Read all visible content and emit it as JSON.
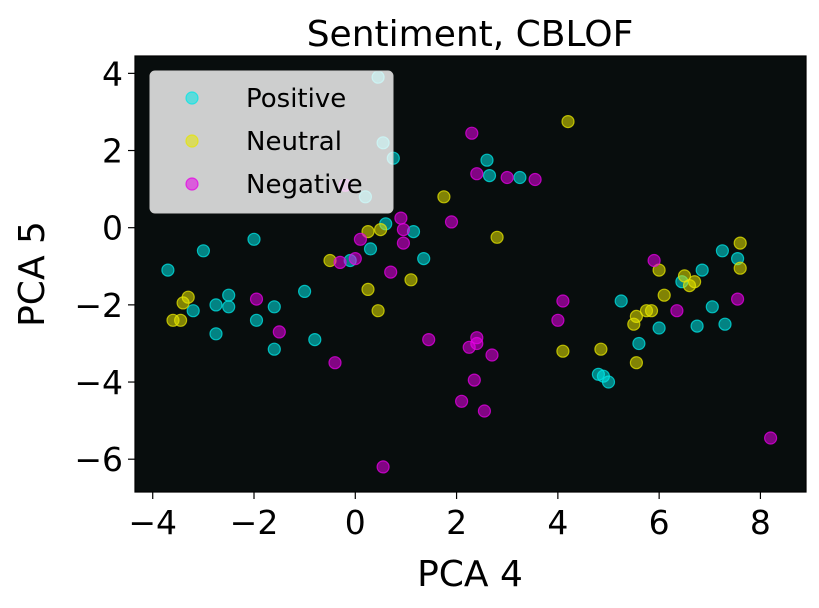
{
  "chart_data": {
    "type": "scatter",
    "title": "Sentiment, CBLOF",
    "xlabel": "PCA 4",
    "ylabel": "PCA 5",
    "xlim": [
      -4.35,
      8.9
    ],
    "ylim": [
      -6.85,
      4.45
    ],
    "xticks": [
      -4,
      -2,
      0,
      2,
      4,
      6,
      8
    ],
    "yticks": [
      -6,
      -4,
      -2,
      0,
      2,
      4
    ],
    "xtick_labels": [
      "−4",
      "−2",
      "0",
      "2",
      "4",
      "6",
      "8"
    ],
    "ytick_labels": [
      "−6",
      "−4",
      "−2",
      "0",
      "2",
      "4"
    ],
    "grid": false,
    "legend_position": "top-left",
    "background": "#080d0d",
    "series": [
      {
        "name": "Positive",
        "color": "#00e5e5",
        "points": [
          [
            0.45,
            3.9
          ],
          [
            0.55,
            2.2
          ],
          [
            0.75,
            1.8
          ],
          [
            0.2,
            0.8
          ],
          [
            2.6,
            1.75
          ],
          [
            2.65,
            1.35
          ],
          [
            3.25,
            1.3
          ],
          [
            0.6,
            0.1
          ],
          [
            0.3,
            -0.55
          ],
          [
            1.15,
            -0.1
          ],
          [
            1.35,
            -0.8
          ],
          [
            -0.1,
            -0.85
          ],
          [
            -3.7,
            -1.1
          ],
          [
            -3.0,
            -0.6
          ],
          [
            -2.0,
            -0.3
          ],
          [
            -1.0,
            -1.65
          ],
          [
            -1.6,
            -2.05
          ],
          [
            -1.6,
            -3.15
          ],
          [
            -0.8,
            -2.9
          ],
          [
            -2.5,
            -1.75
          ],
          [
            -2.5,
            -2.05
          ],
          [
            -2.75,
            -2.0
          ],
          [
            -3.2,
            -2.15
          ],
          [
            -1.95,
            -2.4
          ],
          [
            -2.75,
            -2.75
          ],
          [
            4.8,
            -3.8
          ],
          [
            4.9,
            -3.85
          ],
          [
            5.0,
            -4.0
          ],
          [
            5.25,
            -1.9
          ],
          [
            5.6,
            -3.0
          ],
          [
            6.0,
            -2.6
          ],
          [
            6.45,
            -1.4
          ],
          [
            6.75,
            -2.55
          ],
          [
            6.85,
            -1.1
          ],
          [
            7.05,
            -2.05
          ],
          [
            7.25,
            -0.6
          ],
          [
            7.3,
            -2.5
          ],
          [
            7.55,
            -0.8
          ]
        ]
      },
      {
        "name": "Neutral",
        "color": "#e5e500",
        "points": [
          [
            4.2,
            2.75
          ],
          [
            1.75,
            0.8
          ],
          [
            0.25,
            -0.1
          ],
          [
            0.5,
            -0.05
          ],
          [
            2.8,
            -0.25
          ],
          [
            -0.5,
            -0.85
          ],
          [
            1.1,
            -1.35
          ],
          [
            0.25,
            -1.6
          ],
          [
            0.45,
            -2.15
          ],
          [
            -3.3,
            -1.8
          ],
          [
            -3.4,
            -1.95
          ],
          [
            -3.6,
            -2.4
          ],
          [
            -3.45,
            -2.4
          ],
          [
            4.1,
            -3.2
          ],
          [
            4.85,
            -3.15
          ],
          [
            5.5,
            -2.5
          ],
          [
            5.55,
            -2.3
          ],
          [
            5.75,
            -2.15
          ],
          [
            5.85,
            -2.15
          ],
          [
            5.55,
            -3.5
          ],
          [
            6.0,
            -1.1
          ],
          [
            6.1,
            -1.75
          ],
          [
            6.5,
            -1.25
          ],
          [
            6.6,
            -1.5
          ],
          [
            6.7,
            -1.4
          ],
          [
            7.6,
            -0.4
          ],
          [
            7.6,
            -1.05
          ]
        ]
      },
      {
        "name": "Negative",
        "color": "#e500e5",
        "points": [
          [
            2.3,
            2.45
          ],
          [
            2.4,
            1.4
          ],
          [
            3.0,
            1.3
          ],
          [
            3.55,
            1.25
          ],
          [
            -0.2,
            1.1
          ],
          [
            1.9,
            0.15
          ],
          [
            0.9,
            0.25
          ],
          [
            0.95,
            -0.05
          ],
          [
            0.95,
            -0.4
          ],
          [
            0.1,
            -0.3
          ],
          [
            -0.3,
            -0.9
          ],
          [
            0.0,
            -0.8
          ],
          [
            0.7,
            -1.15
          ],
          [
            -1.95,
            -1.85
          ],
          [
            -1.5,
            -2.7
          ],
          [
            -0.4,
            -3.5
          ],
          [
            1.45,
            -2.9
          ],
          [
            2.25,
            -3.1
          ],
          [
            2.4,
            -2.85
          ],
          [
            2.4,
            -3.0
          ],
          [
            2.7,
            -3.3
          ],
          [
            2.35,
            -3.95
          ],
          [
            2.1,
            -4.5
          ],
          [
            2.55,
            -4.75
          ],
          [
            0.55,
            -6.2
          ],
          [
            4.0,
            -2.4
          ],
          [
            4.1,
            -1.9
          ],
          [
            5.9,
            -0.85
          ],
          [
            6.35,
            -2.15
          ],
          [
            7.55,
            -1.85
          ],
          [
            8.2,
            -5.45
          ]
        ]
      }
    ]
  }
}
